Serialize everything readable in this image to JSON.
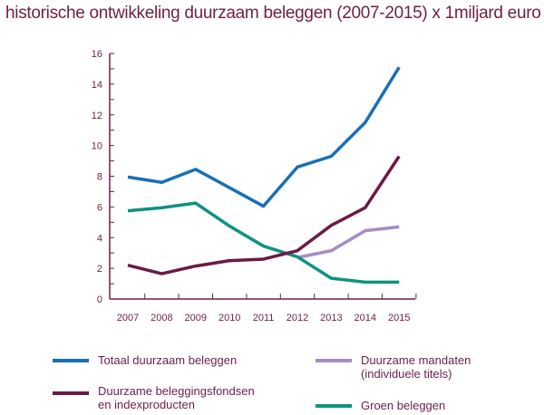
{
  "title": "historische ontwikkeling duurzaam beleggen (2007-2015) x 1miljard euro",
  "chart_data": {
    "type": "line",
    "title": "historische ontwikkeling duurzaam beleggen (2007-2015) x 1miljard euro",
    "categories": [
      "2007",
      "2008",
      "2009",
      "2010",
      "2011",
      "2012",
      "2013",
      "2014",
      "2015"
    ],
    "ylim": [
      0,
      16
    ],
    "yticks": [
      "0",
      "2",
      "4",
      "6",
      "8",
      "10",
      "12",
      "14",
      "16"
    ],
    "grid": false,
    "legend_placement": "bottom",
    "series": [
      {
        "name": "Totaal duurzaam beleggen",
        "color": "#1a6fb5",
        "values": [
          7.95,
          7.6,
          8.45,
          7.25,
          6.05,
          8.6,
          9.3,
          11.5,
          15.1
        ]
      },
      {
        "name": "Duurzame beleggingsfondsen en indexproducten",
        "name_lines": [
          "Duurzame beleggingsfondsen",
          "en indexproducten"
        ],
        "color": "#6b1a45",
        "values": [
          2.2,
          1.65,
          2.15,
          2.5,
          2.6,
          3.15,
          4.8,
          5.95,
          9.3
        ]
      },
      {
        "name": "Duurzame mandaten (individuele titels)",
        "name_lines": [
          "Duurzame mandaten",
          "(individuele titels)"
        ],
        "color": "#a58cc8",
        "values": [
          null,
          null,
          null,
          null,
          null,
          2.7,
          3.15,
          4.45,
          4.7
        ]
      },
      {
        "name": "Groen beleggen",
        "color": "#0f9281",
        "values": [
          5.75,
          5.95,
          6.25,
          4.75,
          3.45,
          2.75,
          1.35,
          1.1,
          1.1
        ]
      }
    ]
  }
}
